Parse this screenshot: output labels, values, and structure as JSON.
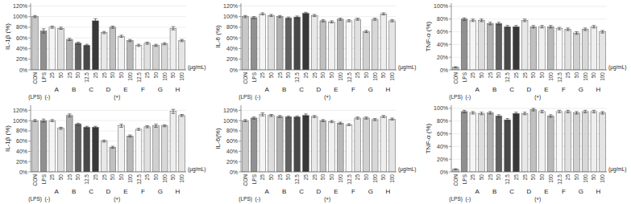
{
  "chart_data": [
    {
      "type": "bar",
      "y_label": "IL-1β (%)",
      "categories": [
        "CON",
        "LPS",
        "25",
        "50",
        "25",
        "50",
        "12.5",
        "25",
        "25",
        "50",
        "50",
        "100",
        "12.5",
        "25",
        "50",
        "100",
        "50",
        "100"
      ],
      "values": [
        1.0,
        0.73,
        0.8,
        0.78,
        0.57,
        0.5,
        0.46,
        0.92,
        0.7,
        0.8,
        0.63,
        0.55,
        0.46,
        0.5,
        0.46,
        0.49,
        0.78,
        0.55
      ],
      "errors": [
        0.02,
        0.04,
        0.02,
        0.02,
        0.02,
        0.02,
        0.02,
        0.04,
        0.02,
        0.02,
        0.02,
        0.02,
        0.02,
        0.02,
        0.02,
        0.02,
        0.03,
        0.02
      ],
      "colors": [
        "#c8c8c8",
        "#909090",
        "#f5f5f5",
        "#dddddd",
        "#b0b0b0",
        "#606060",
        "#484848",
        "#383838",
        "#e8e8e8",
        "#c0c0c0",
        "#f0f0f0",
        "#b8b8b8",
        "#f8f8f8",
        "#e0e0e0",
        "#d0d0d0",
        "#d8d8d8",
        "#eeeeee",
        "#e4e4e4"
      ],
      "ylim": [
        0,
        1.25
      ],
      "yticks": [
        {
          "value": 0,
          "label": "0%"
        },
        {
          "value": 0.2,
          "label": "20%"
        },
        {
          "value": 0.4,
          "label": "40%"
        },
        {
          "value": 0.6,
          "label": "60%"
        },
        {
          "value": 0.8,
          "label": "80%"
        },
        {
          "value": 1.0,
          "label": "100%"
        },
        {
          "value": 1.2,
          "label": "120%"
        }
      ],
      "grid": true,
      "annotations": [
        "A",
        "B",
        "C",
        "D",
        "E",
        "F",
        "G",
        "H",
        "(LPS)  (-)",
        "(+)",
        "(µg/mL)"
      ]
    },
    {
      "type": "bar",
      "y_label": "IL-6 (%)",
      "categories": [
        "CON",
        "LPS",
        "25",
        "50",
        "25",
        "50",
        "12.5",
        "25",
        "25",
        "50",
        "50",
        "100",
        "12.5",
        "25",
        "50",
        "100",
        "50",
        "100"
      ],
      "values": [
        1.0,
        0.98,
        1.05,
        1.02,
        1.0,
        0.97,
        0.99,
        1.06,
        1.02,
        0.92,
        0.9,
        0.95,
        0.92,
        0.95,
        0.72,
        0.95,
        1.05,
        0.92
      ],
      "errors": [
        0.02,
        0.02,
        0.02,
        0.02,
        0.02,
        0.02,
        0.02,
        0.02,
        0.02,
        0.02,
        0.02,
        0.02,
        0.02,
        0.02,
        0.02,
        0.02,
        0.02,
        0.02
      ],
      "colors": [
        "#c8c8c8",
        "#909090",
        "#f5f5f5",
        "#dddddd",
        "#b0b0b0",
        "#606060",
        "#484848",
        "#383838",
        "#e8e8e8",
        "#c0c0c0",
        "#f0f0f0",
        "#b8b8b8",
        "#f8f8f8",
        "#e0e0e0",
        "#d0d0d0",
        "#d8d8d8",
        "#eeeeee",
        "#e4e4e4"
      ],
      "ylim": [
        0,
        1.25
      ],
      "yticks": [
        {
          "value": 0,
          "label": "0%"
        },
        {
          "value": 0.2,
          "label": "20%"
        },
        {
          "value": 0.4,
          "label": "40%"
        },
        {
          "value": 0.6,
          "label": "60%"
        },
        {
          "value": 0.8,
          "label": "80%"
        },
        {
          "value": 1.0,
          "label": "100%"
        },
        {
          "value": 1.2,
          "label": "120%"
        }
      ],
      "grid": true,
      "annotations": [
        "A",
        "B",
        "C",
        "D",
        "E",
        "F",
        "G",
        "H",
        "(LPS)  (-)",
        "(+)",
        "(µg/mL)"
      ]
    },
    {
      "type": "bar",
      "y_label": "TNF-α (%)",
      "categories": [
        "CON",
        "LPS",
        "25",
        "50",
        "25",
        "50",
        "12.5",
        "25",
        "25",
        "50",
        "50",
        "100",
        "12.5",
        "25",
        "50",
        "100",
        "50",
        "100"
      ],
      "values": [
        0.04,
        0.8,
        0.78,
        0.78,
        0.73,
        0.73,
        0.68,
        0.68,
        0.78,
        0.68,
        0.68,
        0.68,
        0.65,
        0.64,
        0.58,
        0.64,
        0.68,
        0.6
      ],
      "errors": [
        0.01,
        0.02,
        0.02,
        0.02,
        0.02,
        0.02,
        0.02,
        0.02,
        0.02,
        0.02,
        0.02,
        0.02,
        0.02,
        0.02,
        0.02,
        0.02,
        0.02,
        0.02
      ],
      "colors": [
        "#c8c8c8",
        "#909090",
        "#f5f5f5",
        "#dddddd",
        "#b0b0b0",
        "#606060",
        "#484848",
        "#383838",
        "#e8e8e8",
        "#c0c0c0",
        "#f0f0f0",
        "#b8b8b8",
        "#f8f8f8",
        "#e0e0e0",
        "#d0d0d0",
        "#d8d8d8",
        "#eeeeee",
        "#e4e4e4"
      ],
      "ylim": [
        0,
        1.05
      ],
      "yticks": [
        {
          "value": 0,
          "label": "0%"
        },
        {
          "value": 0.2,
          "label": "20%"
        },
        {
          "value": 0.4,
          "label": "40%"
        },
        {
          "value": 0.6,
          "label": "60%"
        },
        {
          "value": 0.8,
          "label": "80%"
        },
        {
          "value": 1.0,
          "label": "100%"
        }
      ],
      "grid": true,
      "annotations": [
        "A",
        "B",
        "C",
        "D",
        "E",
        "F",
        "G",
        "H",
        "(LPS)  (-)",
        "(+)",
        "(µg/mL)"
      ]
    },
    {
      "type": "bar",
      "y_label": "IL-1β (%)",
      "categories": [
        "CON",
        "LPS",
        "25",
        "50",
        "25",
        "50",
        "12.5",
        "25",
        "25",
        "50",
        "50",
        "100",
        "12.5",
        "25",
        "50",
        "100",
        "50",
        "100"
      ],
      "values": [
        1.0,
        1.0,
        1.0,
        0.85,
        1.1,
        0.93,
        0.87,
        0.87,
        0.6,
        0.48,
        0.9,
        0.7,
        0.83,
        0.88,
        0.9,
        0.9,
        1.18,
        1.1
      ],
      "errors": [
        0.02,
        0.03,
        0.02,
        0.02,
        0.03,
        0.02,
        0.02,
        0.02,
        0.02,
        0.02,
        0.03,
        0.02,
        0.02,
        0.02,
        0.03,
        0.02,
        0.04,
        0.02
      ],
      "colors": [
        "#c8c8c8",
        "#909090",
        "#f5f5f5",
        "#dddddd",
        "#b0b0b0",
        "#606060",
        "#484848",
        "#383838",
        "#e8e8e8",
        "#c0c0c0",
        "#f0f0f0",
        "#b8b8b8",
        "#f8f8f8",
        "#e0e0e0",
        "#d0d0d0",
        "#d8d8d8",
        "#eeeeee",
        "#e4e4e4"
      ],
      "ylim": [
        0,
        1.3
      ],
      "yticks": [
        {
          "value": 0,
          "label": "0%"
        },
        {
          "value": 0.2,
          "label": "20%"
        },
        {
          "value": 0.4,
          "label": "40%"
        },
        {
          "value": 0.6,
          "label": "60%"
        },
        {
          "value": 0.8,
          "label": "80%"
        },
        {
          "value": 1.0,
          "label": "100%"
        },
        {
          "value": 1.2,
          "label": "120%"
        }
      ],
      "grid": true,
      "annotations": [
        "A",
        "B",
        "C",
        "D",
        "E",
        "F",
        "G",
        "H",
        "(LPS)  (-)",
        "(+)",
        "(µg/mL)"
      ]
    },
    {
      "type": "bar",
      "y_label": "IL-6(%)",
      "categories": [
        "CON",
        "LPS",
        "25",
        "50",
        "25",
        "50",
        "12.5",
        "25",
        "25",
        "50",
        "50",
        "100",
        "12.5",
        "25",
        "50",
        "100",
        "50",
        "100"
      ],
      "values": [
        1.0,
        1.05,
        1.12,
        1.1,
        1.08,
        1.07,
        1.07,
        1.1,
        1.08,
        1.0,
        0.98,
        0.95,
        0.92,
        1.05,
        1.05,
        1.02,
        1.08,
        1.03
      ],
      "errors": [
        0.02,
        0.02,
        0.03,
        0.02,
        0.02,
        0.02,
        0.02,
        0.03,
        0.02,
        0.02,
        0.02,
        0.02,
        0.02,
        0.02,
        0.02,
        0.02,
        0.02,
        0.02
      ],
      "colors": [
        "#c8c8c8",
        "#909090",
        "#f5f5f5",
        "#dddddd",
        "#b0b0b0",
        "#606060",
        "#484848",
        "#383838",
        "#e8e8e8",
        "#c0c0c0",
        "#f0f0f0",
        "#b8b8b8",
        "#f8f8f8",
        "#e0e0e0",
        "#d0d0d0",
        "#d8d8d8",
        "#eeeeee",
        "#e4e4e4"
      ],
      "ylim": [
        0,
        1.3
      ],
      "yticks": [
        {
          "value": 0,
          "label": "0%"
        },
        {
          "value": 0.2,
          "label": "20%"
        },
        {
          "value": 0.4,
          "label": "40%"
        },
        {
          "value": 0.6,
          "label": "60%"
        },
        {
          "value": 0.8,
          "label": "80%"
        },
        {
          "value": 1.0,
          "label": "100%"
        },
        {
          "value": 1.2,
          "label": "120%"
        }
      ],
      "grid": true,
      "annotations": [
        "A",
        "B",
        "C",
        "D",
        "E",
        "F",
        "G",
        "H",
        "(LPS)  (-)",
        "(+)",
        "(µg/mL)"
      ]
    },
    {
      "type": "bar",
      "y_label": "TNF-α (%)",
      "categories": [
        "CON",
        "LPS",
        "25",
        "50",
        "25",
        "50",
        "12.5",
        "25",
        "25",
        "50",
        "50",
        "100",
        "12.5",
        "25",
        "50",
        "100",
        "50",
        "100"
      ],
      "values": [
        0.04,
        0.95,
        0.93,
        0.92,
        0.93,
        0.88,
        0.82,
        0.92,
        0.92,
        0.98,
        0.95,
        0.88,
        0.95,
        0.95,
        0.93,
        0.95,
        0.95,
        0.93
      ],
      "errors": [
        0.01,
        0.02,
        0.02,
        0.02,
        0.02,
        0.02,
        0.02,
        0.02,
        0.02,
        0.02,
        0.02,
        0.02,
        0.02,
        0.02,
        0.02,
        0.02,
        0.02,
        0.02
      ],
      "colors": [
        "#c8c8c8",
        "#909090",
        "#f5f5f5",
        "#dddddd",
        "#b0b0b0",
        "#606060",
        "#484848",
        "#383838",
        "#e8e8e8",
        "#c0c0c0",
        "#f0f0f0",
        "#b8b8b8",
        "#f8f8f8",
        "#e0e0e0",
        "#d0d0d0",
        "#d8d8d8",
        "#eeeeee",
        "#e4e4e4"
      ],
      "ylim": [
        0,
        1.05
      ],
      "yticks": [
        {
          "value": 0,
          "label": "0%"
        },
        {
          "value": 0.2,
          "label": "20%"
        },
        {
          "value": 0.4,
          "label": "40%"
        },
        {
          "value": 0.6,
          "label": "60%"
        },
        {
          "value": 0.8,
          "label": "80%"
        },
        {
          "value": 1.0,
          "label": "100%"
        }
      ],
      "grid": true,
      "annotations": [
        "A",
        "B",
        "C",
        "D",
        "E",
        "F",
        "G",
        "H",
        "(LPS)  (-)",
        "(+)",
        "(µg/mL)"
      ]
    }
  ]
}
